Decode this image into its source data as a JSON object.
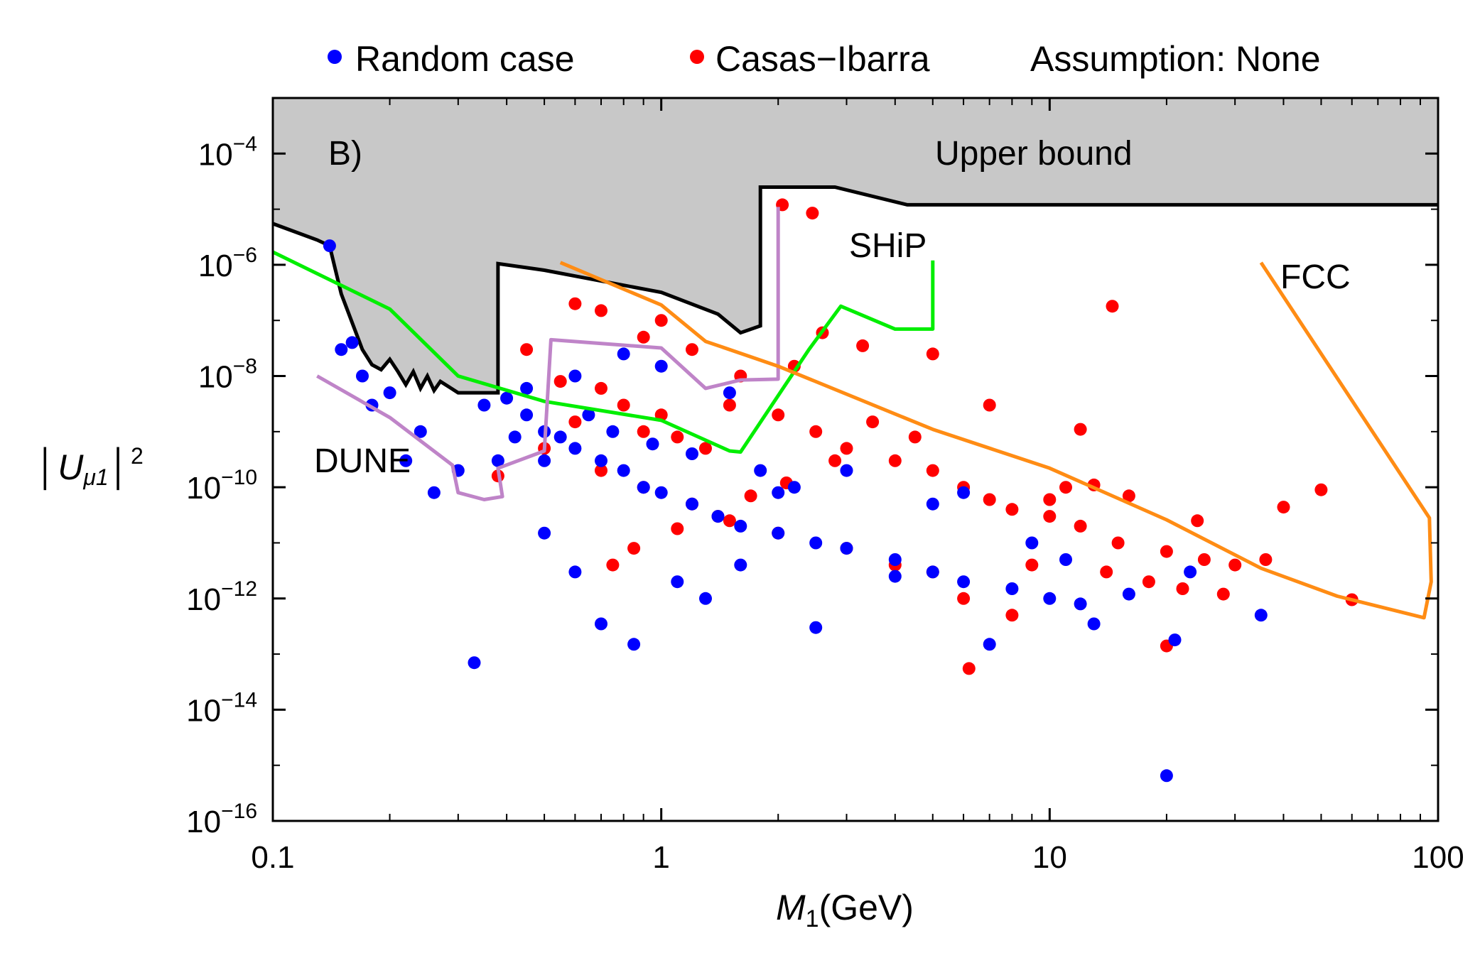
{
  "colors": {
    "random": "#0000ff",
    "casas": "#ff0000",
    "upper_bound_fill": "#c8c8c8",
    "upper_bound_line": "#000000",
    "ship": "#00ee00",
    "dune": "#bf84c8",
    "fcc": "#ff8c14"
  },
  "chart_data": {
    "type": "scatter",
    "title": "",
    "panel_label": "B)",
    "xlabel": "M",
    "xlabel_sub": "1",
    "xlabel_unit": "(GeV)",
    "ylabel": "|U_{μ1}|^2",
    "xscale": "log",
    "yscale": "log",
    "xlim": [
      0.1,
      100
    ],
    "ylim": [
      1e-16,
      0.001
    ],
    "x_ticks": [
      {
        "value": 0.1,
        "label": "0.1"
      },
      {
        "value": 1,
        "label": "1"
      },
      {
        "value": 10,
        "label": "10"
      },
      {
        "value": 100,
        "label": "100"
      }
    ],
    "y_ticks": [
      {
        "value": 1e-16,
        "base": "10",
        "exp": "−16"
      },
      {
        "value": 1e-14,
        "base": "10",
        "exp": "−14"
      },
      {
        "value": 1e-12,
        "base": "10",
        "exp": "−12"
      },
      {
        "value": 1e-10,
        "base": "10",
        "exp": "−10"
      },
      {
        "value": 1e-08,
        "base": "10",
        "exp": "−8"
      },
      {
        "value": 1e-06,
        "base": "10",
        "exp": "−6"
      },
      {
        "value": 0.0001,
        "base": "10",
        "exp": "−4"
      }
    ],
    "legend": {
      "placement": "top",
      "entries": [
        {
          "name": "Random case",
          "color": "#0000ff"
        },
        {
          "name": "Casas−Ibarra",
          "color": "#ff0000"
        }
      ],
      "note": "Assumption: None"
    },
    "regions": [
      {
        "name": "Upper bound",
        "label": "Upper bound",
        "boundary": [
          [
            0.1,
            5.5e-06
          ],
          [
            0.13,
            2.8e-06
          ],
          [
            0.14,
            2.2e-06
          ],
          [
            0.15,
            3e-07
          ],
          [
            0.17,
            3e-08
          ],
          [
            0.18,
            1.6e-08
          ],
          [
            0.19,
            1.3e-08
          ],
          [
            0.2,
            2e-08
          ],
          [
            0.21,
            1.2e-08
          ],
          [
            0.22,
            7e-09
          ],
          [
            0.23,
            1.2e-08
          ],
          [
            0.24,
            6e-09
          ],
          [
            0.25,
            1e-08
          ],
          [
            0.26,
            5.5e-09
          ],
          [
            0.27,
            8e-09
          ],
          [
            0.3,
            5e-09
          ],
          [
            0.38,
            5e-09
          ],
          [
            0.38,
            1.05e-06
          ],
          [
            0.5,
            8e-07
          ],
          [
            1.0,
            3.2e-07
          ],
          [
            1.4,
            1.3e-07
          ],
          [
            1.6,
            6e-08
          ],
          [
            1.8,
            8e-08
          ],
          [
            1.8,
            2.5e-05
          ],
          [
            2.8,
            2.5e-05
          ],
          [
            4.3,
            1.2e-05
          ],
          [
            100,
            1.2e-05
          ]
        ]
      }
    ],
    "series": [
      {
        "name": "SHiP",
        "label": "SHiP",
        "kind": "line",
        "color": "#00ee00",
        "points": [
          [
            0.1,
            1.7e-06
          ],
          [
            0.2,
            1.6e-07
          ],
          [
            0.3,
            1e-08
          ],
          [
            0.5,
            3.5e-09
          ],
          [
            1.0,
            1.6e-09
          ],
          [
            1.5,
            4.5e-10
          ],
          [
            1.6,
            4.3e-10
          ],
          [
            2.4,
            3e-08
          ],
          [
            2.9,
            1.8e-07
          ],
          [
            4.0,
            7e-08
          ],
          [
            5.0,
            7e-08
          ],
          [
            5.0,
            1.2e-06
          ]
        ]
      },
      {
        "name": "DUNE",
        "label": "DUNE",
        "kind": "line",
        "color": "#bf84c8",
        "points": [
          [
            0.13,
            1e-08
          ],
          [
            0.2,
            1.8e-09
          ],
          [
            0.29,
            2.5e-10
          ],
          [
            0.3,
            8e-11
          ],
          [
            0.35,
            6e-11
          ],
          [
            0.39,
            6.8e-11
          ],
          [
            0.38,
            2.2e-10
          ],
          [
            0.5,
            4.5e-10
          ],
          [
            0.52,
            4.5e-08
          ],
          [
            1.0,
            3.2e-08
          ],
          [
            1.3,
            6e-09
          ],
          [
            1.6,
            8.5e-09
          ],
          [
            2.0,
            8.8e-09
          ],
          [
            2.0,
            1.1e-05
          ]
        ]
      },
      {
        "name": "FCC",
        "label": "FCC",
        "kind": "line",
        "color": "#ff8c14",
        "points": [
          [
            0.55,
            1.1e-06
          ],
          [
            1.0,
            1.9e-07
          ],
          [
            1.3,
            4.2e-08
          ],
          [
            2.0,
            1.5e-08
          ],
          [
            5.0,
            1.1e-09
          ],
          [
            10,
            2.2e-10
          ],
          [
            20,
            2.6e-11
          ],
          [
            35,
            3.5e-12
          ],
          [
            55,
            1.1e-12
          ],
          [
            92,
            4.5e-13
          ],
          [
            96,
            2e-12
          ],
          [
            95,
            2.8e-11
          ],
          [
            35,
            1.1e-06
          ]
        ]
      },
      {
        "name": "Casas−Ibarra",
        "kind": "scatter",
        "color": "#ff0000",
        "points": [
          [
            2.05,
            1.2e-05
          ],
          [
            2.45,
            8.5e-06
          ],
          [
            14.5,
            1.8e-07
          ],
          [
            50,
            9e-11
          ],
          [
            40,
            4.4e-11
          ],
          [
            60,
            9.5e-13
          ],
          [
            36,
            5e-12
          ],
          [
            20,
            1.4e-13
          ],
          [
            6.2,
            5.5e-14
          ],
          [
            0.38,
            1.6e-10
          ],
          [
            0.45,
            3e-08
          ],
          [
            0.6,
            2e-07
          ],
          [
            0.7,
            1.5e-07
          ],
          [
            1.0,
            1e-07
          ],
          [
            0.9,
            5e-08
          ],
          [
            1.2,
            3e-08
          ],
          [
            0.55,
            8e-09
          ],
          [
            0.7,
            6e-09
          ],
          [
            0.8,
            3e-09
          ],
          [
            1.0,
            2e-09
          ],
          [
            1.1,
            8e-10
          ],
          [
            1.3,
            5e-10
          ],
          [
            0.6,
            1.5e-09
          ],
          [
            0.9,
            1e-09
          ],
          [
            1.5,
            3e-09
          ],
          [
            2.0,
            2e-09
          ],
          [
            2.5,
            1e-09
          ],
          [
            3.0,
            5e-10
          ],
          [
            4.0,
            3e-10
          ],
          [
            5.0,
            2e-10
          ],
          [
            6.0,
            1e-10
          ],
          [
            7.0,
            6e-11
          ],
          [
            8.0,
            4e-11
          ],
          [
            10,
            3e-11
          ],
          [
            12,
            2e-11
          ],
          [
            15,
            1e-11
          ],
          [
            20,
            7e-12
          ],
          [
            25,
            5e-12
          ],
          [
            30,
            4e-12
          ],
          [
            3.0,
            8e-12
          ],
          [
            4.0,
            4e-12
          ],
          [
            5.0,
            3e-12
          ],
          [
            2.0,
            1.5e-11
          ],
          [
            1.5,
            2.5e-11
          ],
          [
            1.2,
            5e-11
          ],
          [
            0.9,
            1e-10
          ],
          [
            0.7,
            2e-10
          ],
          [
            0.5,
            5e-10
          ],
          [
            8.0,
            5e-13
          ],
          [
            6.0,
            1e-12
          ],
          [
            10,
            6e-11
          ],
          [
            11,
            1e-10
          ],
          [
            12,
            1.1e-09
          ],
          [
            7.0,
            3e-09
          ],
          [
            5.0,
            2.5e-08
          ],
          [
            3.3,
            3.5e-08
          ],
          [
            2.6,
            6e-08
          ],
          [
            2.2,
            1.5e-08
          ],
          [
            1.6,
            1e-08
          ],
          [
            3.5,
            1.5e-09
          ],
          [
            4.5,
            8e-10
          ],
          [
            2.8,
            3e-10
          ],
          [
            2.1,
            1.2e-10
          ],
          [
            1.7,
            7e-11
          ],
          [
            1.4,
            3e-11
          ],
          [
            1.1,
            1.8e-11
          ],
          [
            0.85,
            8e-12
          ],
          [
            0.75,
            4e-12
          ],
          [
            9.0,
            4e-12
          ],
          [
            14,
            3e-12
          ],
          [
            18,
            2e-12
          ],
          [
            22,
            1.5e-12
          ],
          [
            28,
            1.2e-12
          ],
          [
            13,
            1.1e-10
          ],
          [
            16,
            7e-11
          ],
          [
            24,
            2.5e-11
          ]
        ]
      },
      {
        "name": "Random case",
        "kind": "scatter",
        "color": "#0000ff",
        "points": [
          [
            0.14,
            2.2e-06
          ],
          [
            0.15,
            3e-08
          ],
          [
            0.16,
            4e-08
          ],
          [
            0.17,
            1e-08
          ],
          [
            0.18,
            3e-09
          ],
          [
            0.2,
            5e-09
          ],
          [
            0.22,
            3e-10
          ],
          [
            0.24,
            1e-09
          ],
          [
            0.26,
            8e-11
          ],
          [
            0.3,
            2e-10
          ],
          [
            0.33,
            7e-14
          ],
          [
            0.35,
            3e-09
          ],
          [
            0.4,
            4e-09
          ],
          [
            0.45,
            2e-09
          ],
          [
            0.5,
            1e-09
          ],
          [
            0.55,
            8e-10
          ],
          [
            0.6,
            5e-10
          ],
          [
            0.7,
            3e-10
          ],
          [
            0.8,
            2e-10
          ],
          [
            0.9,
            1e-10
          ],
          [
            1.0,
            8e-11
          ],
          [
            1.2,
            5e-11
          ],
          [
            1.4,
            3e-11
          ],
          [
            1.6,
            2e-11
          ],
          [
            2.0,
            1.5e-11
          ],
          [
            2.5,
            1e-11
          ],
          [
            3.0,
            8e-12
          ],
          [
            4.0,
            5e-12
          ],
          [
            5.0,
            3e-12
          ],
          [
            6.0,
            2e-12
          ],
          [
            8.0,
            1.5e-12
          ],
          [
            10,
            1e-12
          ],
          [
            12,
            8e-13
          ],
          [
            13,
            3.5e-13
          ],
          [
            20,
            6.5e-16
          ],
          [
            21,
            1.8e-13
          ],
          [
            35,
            5e-13
          ],
          [
            0.5,
            1.5e-11
          ],
          [
            0.6,
            3e-12
          ],
          [
            0.7,
            3.5e-13
          ],
          [
            0.85,
            1.5e-13
          ],
          [
            1.1,
            2e-12
          ],
          [
            1.3,
            1e-12
          ],
          [
            1.6,
            4e-12
          ],
          [
            2.0,
            8e-11
          ],
          [
            3.0,
            2e-10
          ],
          [
            1.0,
            1.5e-08
          ],
          [
            0.8,
            2.5e-08
          ],
          [
            0.6,
            1e-08
          ],
          [
            0.45,
            6e-09
          ],
          [
            1.5,
            5e-09
          ],
          [
            2.5,
            3e-13
          ],
          [
            4.0,
            2.5e-12
          ],
          [
            7.0,
            1.5e-13
          ],
          [
            9.0,
            1e-11
          ],
          [
            11,
            5e-12
          ],
          [
            16,
            1.2e-12
          ],
          [
            23,
            3e-12
          ],
          [
            0.38,
            3e-10
          ],
          [
            0.42,
            8e-10
          ],
          [
            0.5,
            3e-10
          ],
          [
            0.65,
            2e-09
          ],
          [
            0.75,
            1e-09
          ],
          [
            0.95,
            6e-10
          ],
          [
            1.2,
            4e-10
          ],
          [
            1.8,
            2e-10
          ],
          [
            2.2,
            1e-10
          ],
          [
            6.0,
            8e-11
          ],
          [
            5.0,
            5e-11
          ]
        ]
      }
    ],
    "annotations": [
      "B)",
      "Upper bound",
      "SHiP",
      "FCC",
      "DUNE"
    ]
  }
}
